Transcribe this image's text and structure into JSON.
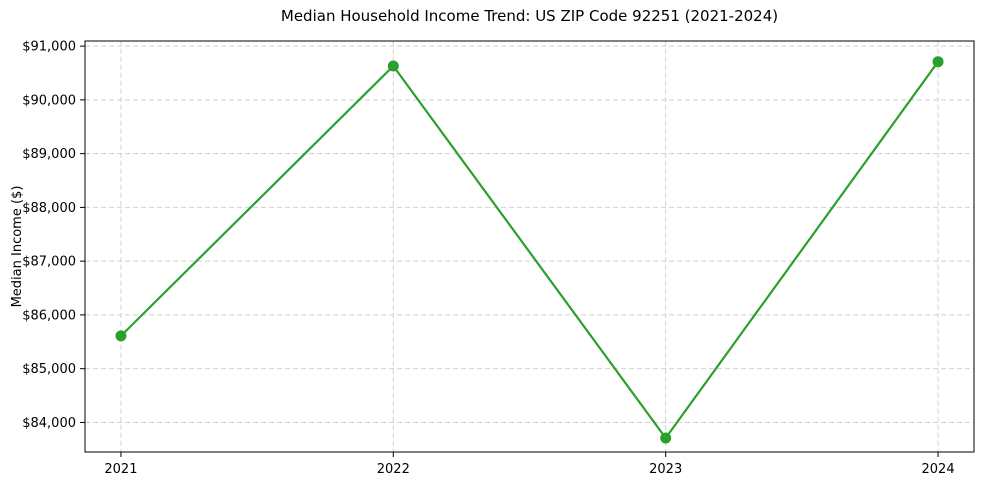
{
  "figure": {
    "background": "#ffffff"
  },
  "chart_data": {
    "type": "line",
    "title": "Median Household Income Trend: US ZIP Code 92251 (2021-2024)",
    "xlabel": "",
    "ylabel": "Median Income ($)",
    "x": [
      2021,
      2022,
      2023,
      2024
    ],
    "series": [
      {
        "name": "Median Household Income",
        "values": [
          85610,
          90630,
          83710,
          90710
        ]
      }
    ],
    "xlim": [
      2020.868,
      2024.132
    ],
    "ylim": [
      83450,
      91095
    ],
    "yticks": {
      "values": [
        84000,
        85000,
        86000,
        87000,
        88000,
        89000,
        90000,
        91000
      ],
      "labels": [
        "$84,000",
        "$85,000",
        "$86,000",
        "$87,000",
        "$88,000",
        "$89,000",
        "$90,000",
        "$91,000"
      ]
    },
    "xticks": {
      "values": [
        2021,
        2022,
        2023,
        2024
      ],
      "labels": [
        "2021",
        "2022",
        "2023",
        "2024"
      ]
    },
    "style": {
      "line_color": "#2ca02c",
      "line_width": 2.2,
      "marker": "circle",
      "marker_diameter": 11,
      "grid_color": "#d0d0d0",
      "grid_dash": "5 3",
      "spine_color": "#000000",
      "tick_color": "#000000",
      "text_color": "#000000"
    },
    "grid": true,
    "legend": {
      "show": false
    }
  }
}
